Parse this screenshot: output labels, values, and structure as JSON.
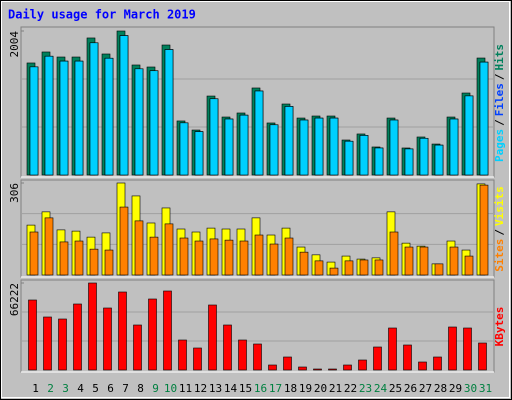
{
  "chart_data": [
    {
      "type": "bar",
      "title": "Daily usage for March 2019",
      "ylim": [
        0,
        2004
      ],
      "yticks": [
        2004
      ],
      "series": [
        {
          "name": "Hits",
          "color": "#00805c",
          "values": [
            1559,
            1712,
            1642,
            1642,
            1907,
            1684,
            2004,
            1531,
            1503,
            1809,
            752,
            626,
            1099,
            807,
            863,
            1211,
            724,
            988,
            793,
            821,
            821,
            487,
            571,
            390,
            793,
            376,
            529,
            431,
            807,
            1141,
            1628
          ]
        },
        {
          "name": "Files",
          "color": "#0040ff",
          "values": [
            1505,
            1653,
            1585,
            1585,
            1840,
            1625,
            1940,
            1478,
            1451,
            1746,
            726,
            604,
            1061,
            779,
            833,
            1169,
            699,
            954,
            765,
            792,
            792,
            470,
            551,
            376,
            765,
            363,
            511,
            416,
            779,
            1101,
            1571
          ]
        },
        {
          "name": "Pages",
          "color": "#00d0ff",
          "values": [
            1505,
            1653,
            1585,
            1585,
            1840,
            1625,
            1940,
            1478,
            1451,
            1746,
            726,
            604,
            1061,
            779,
            833,
            1169,
            699,
            954,
            765,
            792,
            792,
            470,
            551,
            376,
            765,
            363,
            511,
            416,
            779,
            1101,
            1571
          ]
        }
      ],
      "legend_separator": "/"
    },
    {
      "type": "bar",
      "ylim": [
        0,
        306
      ],
      "yticks": [
        306
      ],
      "series": [
        {
          "name": "Visits",
          "color": "#ffff00",
          "values": [
            166,
            210,
            150,
            146,
            126,
            140,
            306,
            263,
            173,
            223,
            153,
            143,
            156,
            153,
            153,
            190,
            133,
            156,
            93,
            67,
            43,
            63,
            53,
            57,
            210,
            106,
            96,
            37,
            113,
            83,
            303
          ]
        },
        {
          "name": "Sites",
          "color": "#ff8000",
          "values": [
            143,
            190,
            110,
            113,
            86,
            83,
            226,
            180,
            126,
            170,
            123,
            113,
            120,
            116,
            113,
            133,
            103,
            123,
            76,
            47,
            23,
            47,
            50,
            50,
            143,
            93,
            93,
            37,
            93,
            63,
            299
          ]
        }
      ],
      "legend_separator": "/"
    },
    {
      "type": "bar",
      "ylim": [
        0,
        66222
      ],
      "yticks": [
        66222
      ],
      "series": [
        {
          "name": "KBytes",
          "color": "#ff0000",
          "values": [
            53284,
            40343,
            38820,
            50237,
            66222,
            47193,
            59373,
            34253,
            54043,
            60134,
            22835,
            16746,
            49477,
            34253,
            22835,
            19790,
            3806,
            9895,
            2283,
            761,
            761,
            3806,
            7612,
            17507,
            31969,
            19029,
            6089,
            9895,
            32731,
            31969,
            20552
          ]
        }
      ],
      "categories": [
        "1",
        "2",
        "3",
        "4",
        "5",
        "6",
        "7",
        "8",
        "9",
        "10",
        "11",
        "12",
        "13",
        "14",
        "15",
        "16",
        "17",
        "18",
        "19",
        "20",
        "21",
        "22",
        "23",
        "24",
        "25",
        "26",
        "27",
        "28",
        "29",
        "30",
        "31"
      ],
      "category_colors": [
        "#000000",
        "#008040",
        "#008040",
        "#000000",
        "#000000",
        "#000000",
        "#000000",
        "#000000",
        "#008040",
        "#008040",
        "#000000",
        "#000000",
        "#000000",
        "#000000",
        "#000000",
        "#008040",
        "#008040",
        "#000000",
        "#000000",
        "#000000",
        "#000000",
        "#000000",
        "#008040",
        "#008040",
        "#000000",
        "#000000",
        "#000000",
        "#000000",
        "#000000",
        "#008040",
        "#008040"
      ]
    }
  ]
}
